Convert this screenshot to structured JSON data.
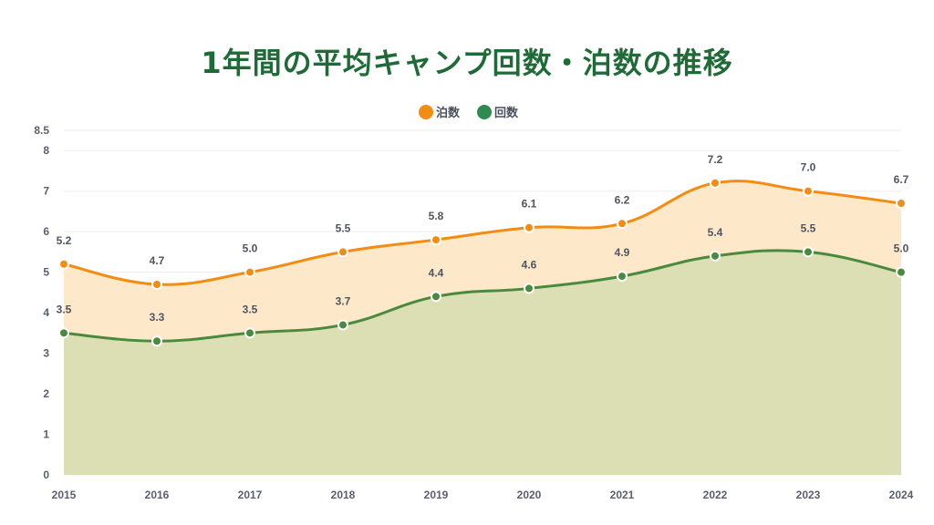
{
  "chart_data": {
    "type": "area",
    "title": "1年間の平均キャンプ回数・泊数の推移",
    "categories": [
      "2015",
      "2016",
      "2017",
      "2018",
      "2019",
      "2020",
      "2021",
      "2022",
      "2023",
      "2024"
    ],
    "series": [
      {
        "name": "泊数",
        "color": "#f28c13",
        "fill": "#fde9c9",
        "values": [
          5.2,
          4.7,
          5.0,
          5.5,
          5.8,
          6.1,
          6.2,
          7.2,
          7.0,
          6.7
        ]
      },
      {
        "name": "回数",
        "color": "#4a8a3e",
        "fill": "#dcdfb4",
        "values": [
          3.5,
          3.3,
          3.5,
          3.7,
          4.4,
          4.6,
          4.9,
          5.4,
          5.5,
          5.0
        ]
      }
    ],
    "legend_colors": [
      "#f28c13",
      "#2e8b4e"
    ],
    "yticks": [
      "0",
      "1",
      "2",
      "3",
      "4",
      "5",
      "6",
      "7",
      "8",
      "8.5"
    ],
    "ylim": [
      0,
      8.5
    ],
    "grid": true,
    "legend_position": "top-center",
    "smooth": true
  }
}
